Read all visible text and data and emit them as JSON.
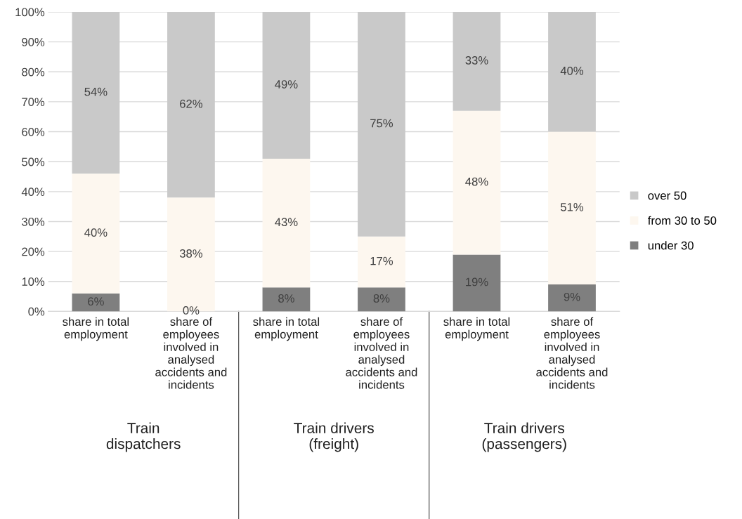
{
  "chart_data": {
    "type": "bar",
    "stacked": true,
    "categories": [
      "share in total\nemployment",
      "share of\nemployees\ninvolved in\nanalysed\naccidents and\nincidents",
      "share in total\nemployment",
      "share of\nemployees\ninvolved in\nanalysed\naccidents and\nincidents",
      "share in total\nemployment",
      "share of\nemployees\ninvolved in\nanalysed\naccidents and\nincidents"
    ],
    "series": [
      {
        "name": "under 30",
        "color": "#7f7f7f",
        "values": [
          6,
          0,
          8,
          8,
          19,
          9
        ]
      },
      {
        "name": "from 30 to 50",
        "color": "#fdf7ef",
        "values": [
          40,
          38,
          43,
          17,
          48,
          51
        ]
      },
      {
        "name": "over 50",
        "color": "#c9c9c9",
        "values": [
          54,
          62,
          49,
          75,
          33,
          40
        ]
      }
    ],
    "ylim": [
      0,
      100
    ],
    "yticks": [
      {
        "value": 0,
        "label": "0%"
      },
      {
        "value": 10,
        "label": "10%"
      },
      {
        "value": 20,
        "label": "20%"
      },
      {
        "value": 30,
        "label": "30%"
      },
      {
        "value": 40,
        "label": "40%"
      },
      {
        "value": 50,
        "label": "50%"
      },
      {
        "value": 60,
        "label": "60%"
      },
      {
        "value": 70,
        "label": "70%"
      },
      {
        "value": 80,
        "label": "80%"
      },
      {
        "value": 90,
        "label": "90%"
      },
      {
        "value": 100,
        "label": "100%"
      }
    ],
    "value_labels": [
      [
        "6%",
        "0%",
        "8%",
        "8%",
        "19%",
        "9%"
      ],
      [
        "40%",
        "38%",
        "43%",
        "17%",
        "48%",
        "51%"
      ],
      [
        "54%",
        "62%",
        "49%",
        "75%",
        "33%",
        "40%"
      ]
    ],
    "annotations": [
      "Train\ndispatchers",
      "Train drivers\n(freight)",
      "Train drivers\n(passengers)"
    ],
    "grid": "y",
    "legend": "right"
  }
}
